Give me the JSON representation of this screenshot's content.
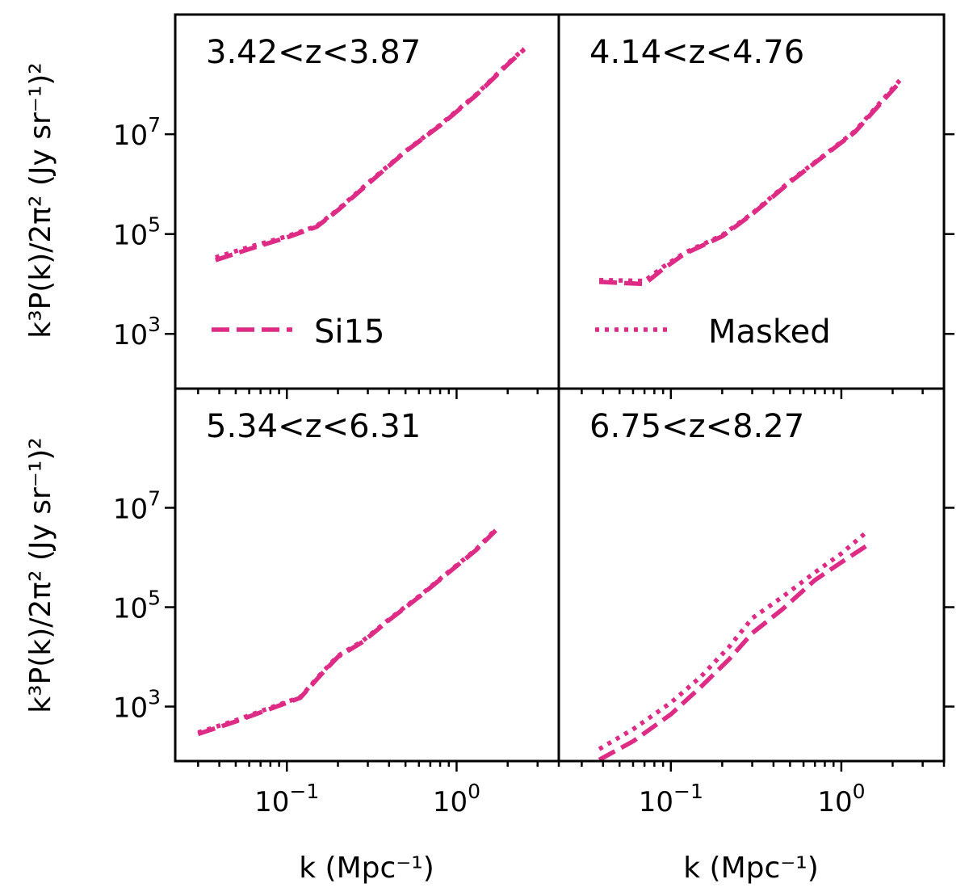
{
  "chart_data": {
    "type": "line",
    "xscale": "log",
    "yscale": "log",
    "xlim": [
      0.022,
      4.0
    ],
    "ylim": [
      80,
      2500000000
    ],
    "xlabel": "k (Mpc⁻¹)",
    "ylabel": "k³P(k)/2π² (Jy sr⁻¹)²",
    "x_ticks": [
      {
        "value": 0.1,
        "base": "10",
        "exp": "−1"
      },
      {
        "value": 1.0,
        "base": "10",
        "exp": "0"
      }
    ],
    "y_ticks": [
      {
        "value": 1000,
        "base": "10",
        "exp": "3"
      },
      {
        "value": 100000,
        "base": "10",
        "exp": "5"
      },
      {
        "value": 10000000,
        "base": "10",
        "exp": "7"
      }
    ],
    "legend": [
      {
        "name": "Si15",
        "style": "dashed"
      },
      {
        "name": "Masked",
        "style": "dotted"
      }
    ],
    "color": "#dd2b86",
    "panels": [
      {
        "label": "3.42<z<3.87",
        "series": [
          {
            "name": "Si15",
            "x": [
              0.038,
              0.06,
              0.1,
              0.15,
              0.2,
              0.3,
              0.5,
              0.8,
              1.3,
              2.0,
              2.5
            ],
            "y": [
              30000,
              50000,
              85000,
              140000,
              300000,
              1000000,
              4500000,
              15000000,
              60000000,
              250000000,
              500000000
            ]
          },
          {
            "name": "Masked",
            "x": [
              0.038,
              0.06,
              0.1,
              0.15,
              0.2,
              0.3,
              0.5,
              0.8,
              1.3,
              2.0,
              2.5
            ],
            "y": [
              34000,
              55000,
              90000,
              145000,
              310000,
              1050000,
              4600000,
              15500000,
              62000000,
              260000000,
              520000000
            ]
          }
        ]
      },
      {
        "label": "4.14<z<4.76",
        "series": [
          {
            "name": "Si15",
            "x": [
              0.038,
              0.07,
              0.09,
              0.12,
              0.2,
              0.3,
              0.5,
              0.8,
              1.2,
              2.2
            ],
            "y": [
              11000,
              10000,
              20000,
              40000,
              90000,
              250000,
              1100000,
              3800000,
              11000000,
              110000000
            ]
          },
          {
            "name": "Masked",
            "x": [
              0.038,
              0.07,
              0.09,
              0.12,
              0.2,
              0.3,
              0.5,
              0.8,
              1.2,
              2.2
            ],
            "y": [
              12000,
              11500,
              22000,
              42000,
              95000,
              260000,
              1150000,
              3900000,
              11500000,
              120000000
            ]
          }
        ]
      },
      {
        "label": "5.34<z<6.31",
        "series": [
          {
            "name": "Si15",
            "x": [
              0.03,
              0.05,
              0.08,
              0.12,
              0.16,
              0.2,
              0.28,
              0.4,
              0.6,
              0.9,
              1.3,
              1.7
            ],
            "y": [
              280,
              500,
              900,
              1500,
              4500,
              10000,
              20000,
              55000,
              160000,
              500000,
              1400000,
              3500000
            ]
          },
          {
            "name": "Masked",
            "x": [
              0.03,
              0.05,
              0.08,
              0.12,
              0.16,
              0.2,
              0.28,
              0.4,
              0.6,
              0.9,
              1.3,
              1.7
            ],
            "y": [
              300,
              530,
              950,
              1550,
              4700,
              10500,
              21000,
              57000,
              165000,
              520000,
              1450000,
              3700000
            ]
          }
        ]
      },
      {
        "label": "6.75<z<8.27",
        "series": [
          {
            "name": "Si15",
            "x": [
              0.038,
              0.06,
              0.1,
              0.15,
              0.22,
              0.3,
              0.45,
              0.7,
              1.0,
              1.4
            ],
            "y": [
              85,
              200,
              700,
              2500,
              9000,
              30000,
              90000,
              350000,
              800000,
              1700000
            ]
          },
          {
            "name": "Masked",
            "x": [
              0.038,
              0.06,
              0.1,
              0.15,
              0.22,
              0.3,
              0.45,
              0.7,
              1.0,
              1.4
            ],
            "y": [
              140,
              350,
              1200,
              4000,
              16000,
              60000,
              160000,
              500000,
              1200000,
              3200000
            ]
          }
        ]
      }
    ]
  }
}
